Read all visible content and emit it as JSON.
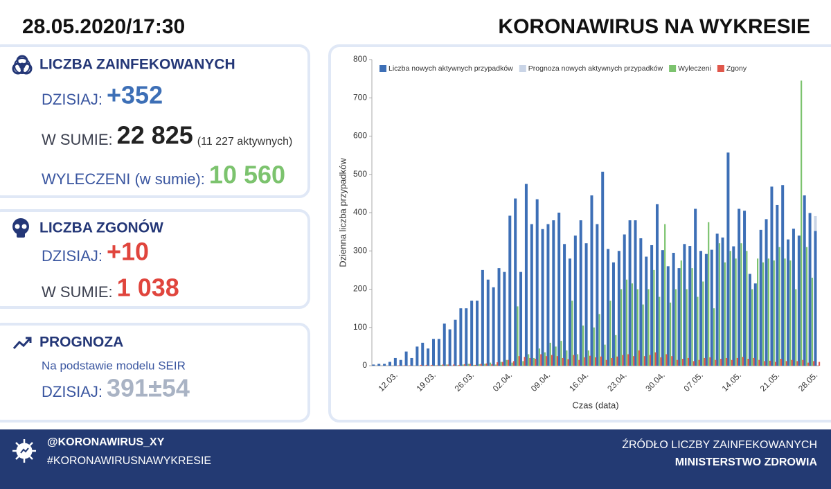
{
  "header": {
    "date": "28.05.2020/17:30",
    "title": "KORONAWIRUS NA WYKRESIE"
  },
  "panels": [
    {
      "title": "LICZBA ZAINFEKOWANYCH",
      "rows": [
        {
          "label": "DZISIAJ:",
          "value": "+352"
        },
        {
          "label": "W SUMIE:",
          "value": "22 825",
          "note": "(11 227 aktywnych)"
        },
        {
          "label": "WYLECZENI (w sumie):",
          "value": "10 560"
        }
      ]
    },
    {
      "title": "LICZBA ZGONÓW",
      "rows": [
        {
          "label": "DZISIAJ:",
          "value": "+10"
        },
        {
          "label": "W SUMIE:",
          "value": "1 038"
        }
      ]
    },
    {
      "title": "PROGNOZA",
      "subtitle": "Na podstawie modelu SEIR",
      "rows": [
        {
          "label": "DZISIAJ:",
          "value": "391±54"
        }
      ]
    }
  ],
  "chart_data": {
    "type": "bar",
    "x_label": "Czas (data)",
    "y_label": "Dzienna liczba przypadków",
    "categories": [
      null,
      null,
      null,
      null,
      "12.03.",
      null,
      null,
      null,
      null,
      null,
      null,
      "19.03.",
      null,
      null,
      null,
      null,
      null,
      null,
      "26.03.",
      null,
      null,
      null,
      null,
      null,
      null,
      "02.04.",
      null,
      null,
      null,
      null,
      null,
      null,
      "09.04.",
      null,
      null,
      null,
      null,
      null,
      null,
      "16.04.",
      null,
      null,
      null,
      null,
      null,
      null,
      "23.04.",
      null,
      null,
      null,
      null,
      null,
      null,
      "30.04.",
      null,
      null,
      null,
      null,
      null,
      null,
      "07.05.",
      null,
      null,
      null,
      null,
      null,
      null,
      "14.05.",
      null,
      null,
      null,
      null,
      null,
      null,
      "21.05.",
      null,
      null,
      null,
      null,
      null,
      null,
      "28.05."
    ],
    "series": [
      {
        "name": "Liczba nowych aktywnych przypadków",
        "color": "#3d6fb6",
        "values": [
          3,
          5,
          5,
          10,
          20,
          15,
          37,
          20,
          50,
          60,
          45,
          70,
          70,
          110,
          95,
          120,
          150,
          150,
          170,
          170,
          250,
          225,
          205,
          255,
          245,
          392,
          437,
          245,
          475,
          370,
          435,
          357,
          370,
          380,
          400,
          318,
          280,
          340,
          380,
          320,
          445,
          370,
          507,
          305,
          270,
          300,
          343,
          380,
          380,
          333,
          285,
          315,
          422,
          302,
          260,
          295,
          255,
          318,
          313,
          410,
          300,
          292,
          303,
          345,
          335,
          557,
          312,
          410,
          405,
          240,
          215,
          355,
          383,
          468,
          420,
          472,
          330,
          358,
          340,
          445,
          399,
          352
        ]
      },
      {
        "name": "Prognoza nowych aktywnych przypadków",
        "color": "#c9d4e6",
        "values": [
          null,
          null,
          null,
          null,
          null,
          null,
          null,
          null,
          null,
          null,
          null,
          null,
          null,
          null,
          null,
          null,
          null,
          null,
          null,
          null,
          null,
          null,
          null,
          null,
          null,
          null,
          null,
          null,
          null,
          null,
          null,
          null,
          null,
          null,
          null,
          null,
          null,
          null,
          null,
          null,
          null,
          null,
          null,
          null,
          null,
          null,
          null,
          null,
          null,
          null,
          null,
          null,
          null,
          null,
          null,
          null,
          null,
          null,
          null,
          null,
          null,
          null,
          null,
          null,
          null,
          null,
          null,
          null,
          null,
          null,
          null,
          null,
          null,
          null,
          null,
          null,
          null,
          null,
          null,
          null,
          null,
          391
        ]
      },
      {
        "name": "Wyleczeni",
        "color": "#7cc36e",
        "values": [
          0,
          0,
          0,
          0,
          0,
          0,
          0,
          0,
          0,
          0,
          0,
          1,
          2,
          3,
          0,
          1,
          3,
          5,
          2,
          4,
          5,
          8,
          3,
          10,
          15,
          8,
          155,
          12,
          30,
          20,
          45,
          35,
          60,
          50,
          65,
          40,
          170,
          30,
          105,
          40,
          100,
          135,
          55,
          170,
          80,
          200,
          225,
          215,
          200,
          160,
          200,
          250,
          180,
          370,
          165,
          200,
          275,
          200,
          255,
          180,
          220,
          375,
          150,
          320,
          270,
          300,
          280,
          320,
          300,
          200,
          280,
          270,
          280,
          275,
          310,
          280,
          275,
          200,
          745,
          310,
          230,
          0
        ]
      },
      {
        "name": "Zgony",
        "color": "#e0574b",
        "values": [
          0,
          0,
          0,
          0,
          1,
          1,
          1,
          0,
          2,
          2,
          2,
          1,
          3,
          3,
          3,
          2,
          4,
          5,
          2,
          5,
          6,
          4,
          9,
          10,
          15,
          12,
          25,
          23,
          20,
          18,
          30,
          25,
          28,
          25,
          20,
          17,
          28,
          15,
          22,
          26,
          22,
          24,
          15,
          20,
          24,
          28,
          30,
          25,
          40,
          25,
          28,
          35,
          22,
          30,
          25,
          15,
          18,
          20,
          12,
          15,
          20,
          22,
          15,
          18,
          20,
          15,
          20,
          23,
          18,
          20,
          15,
          12,
          13,
          10,
          18,
          12,
          15,
          12,
          15,
          8,
          12,
          10
        ]
      }
    ],
    "ylim": [
      0,
      800
    ],
    "yticks": [
      0,
      100,
      200,
      300,
      400,
      500,
      600,
      700,
      800
    ],
    "legend": "top"
  },
  "footer": {
    "handle": "@KORONAWIRUS_XY",
    "hashtag": "#KORONAWIRUSNAWYKRESIE",
    "source_label": "ŹRÓDŁO LICZBY ZAINFEKOWANYCH",
    "source": "MINISTERSTWO ZDROWIA"
  }
}
